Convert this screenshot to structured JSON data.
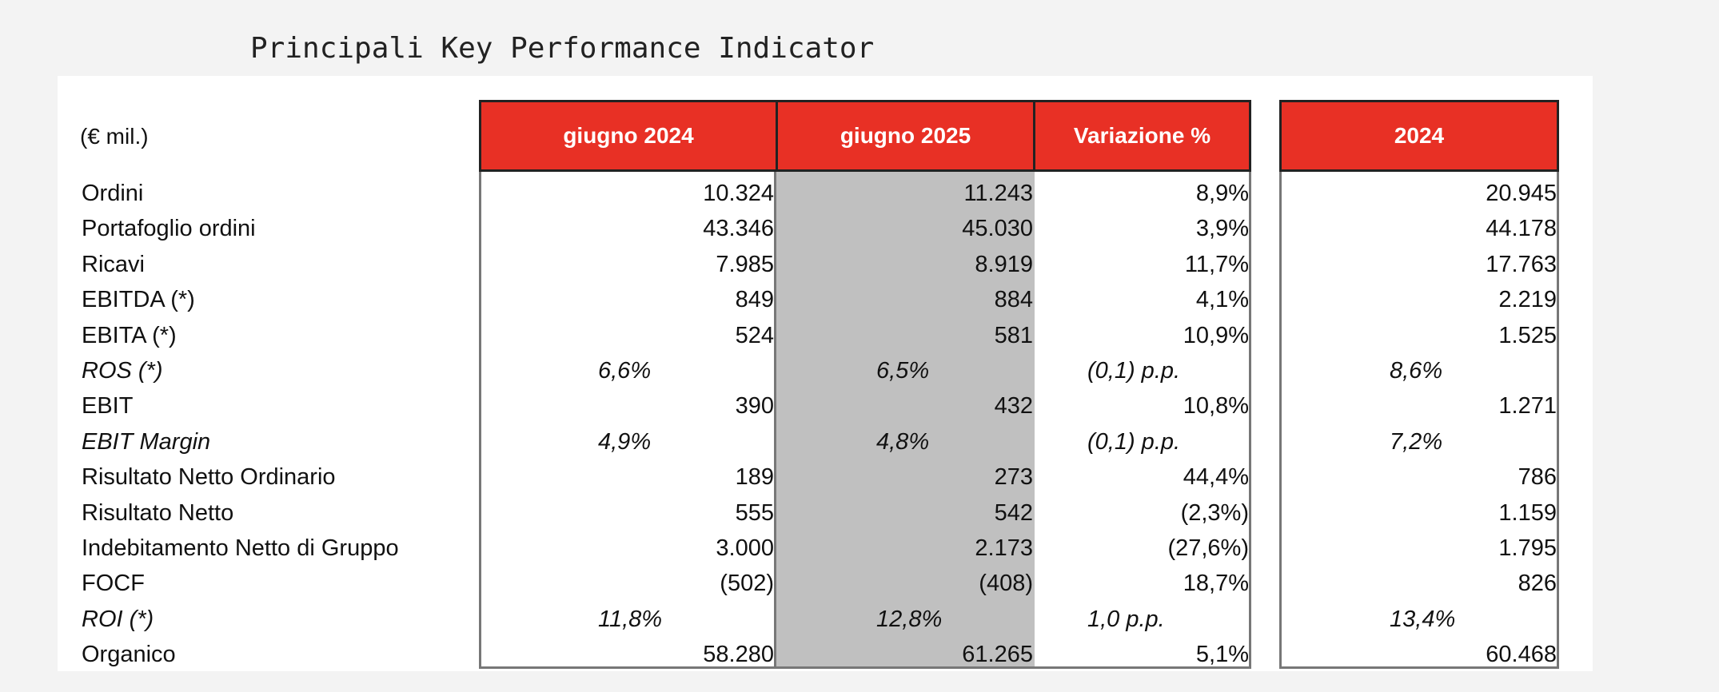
{
  "title": "Principali Key Performance Indicator",
  "unit_label": "(€ mil.)",
  "headers": [
    "giugno 2024",
    "giugno 2025",
    "Variazione %",
    "2024"
  ],
  "colors": {
    "header_red": "#e83025",
    "highlight_gray": "#c0c0c0"
  },
  "rows": [
    {
      "label": "Ordini",
      "v": [
        "10.324",
        "11.243",
        "8,9%",
        "20.945"
      ]
    },
    {
      "label": "Portafoglio ordini",
      "v": [
        "43.346",
        "45.030",
        "3,9%",
        "44.178"
      ]
    },
    {
      "label": "Ricavi",
      "v": [
        "7.985",
        "8.919",
        "11,7%",
        "17.763"
      ]
    },
    {
      "label": "EBITDA (*)",
      "v": [
        "849",
        "884",
        "4,1%",
        "2.219"
      ]
    },
    {
      "label": "EBITA (*)",
      "v": [
        "524",
        "581",
        "10,9%",
        "1.525"
      ]
    },
    {
      "label": "ROS (*)",
      "v": [
        "6,6%",
        "6,5%",
        "(0,1) p.p.",
        "8,6%"
      ]
    },
    {
      "label": "EBIT",
      "v": [
        "390",
        "432",
        "10,8%",
        "1.271"
      ]
    },
    {
      "label": "EBIT Margin",
      "v": [
        "4,9%",
        "4,8%",
        "(0,1) p.p.",
        "7,2%"
      ]
    },
    {
      "label": "Risultato Netto Ordinario",
      "v": [
        "189",
        "273",
        "44,4%",
        "786"
      ]
    },
    {
      "label": "Risultato Netto",
      "v": [
        "555",
        "542",
        "(2,3%)",
        "1.159"
      ]
    },
    {
      "label": "Indebitamento Netto di Gruppo",
      "v": [
        "3.000",
        "2.173",
        "(27,6%)",
        "1.795"
      ]
    },
    {
      "label": "FOCF",
      "v": [
        "(502)",
        "(408)",
        "18,7%",
        "826"
      ]
    },
    {
      "label": "ROI (*)",
      "v": [
        "11,8%",
        "12,8%",
        "1,0 p.p.",
        "13,4%"
      ]
    },
    {
      "label": "Organico",
      "v": [
        "58.280",
        "61.265",
        "5,1%",
        "60.468"
      ]
    }
  ]
}
